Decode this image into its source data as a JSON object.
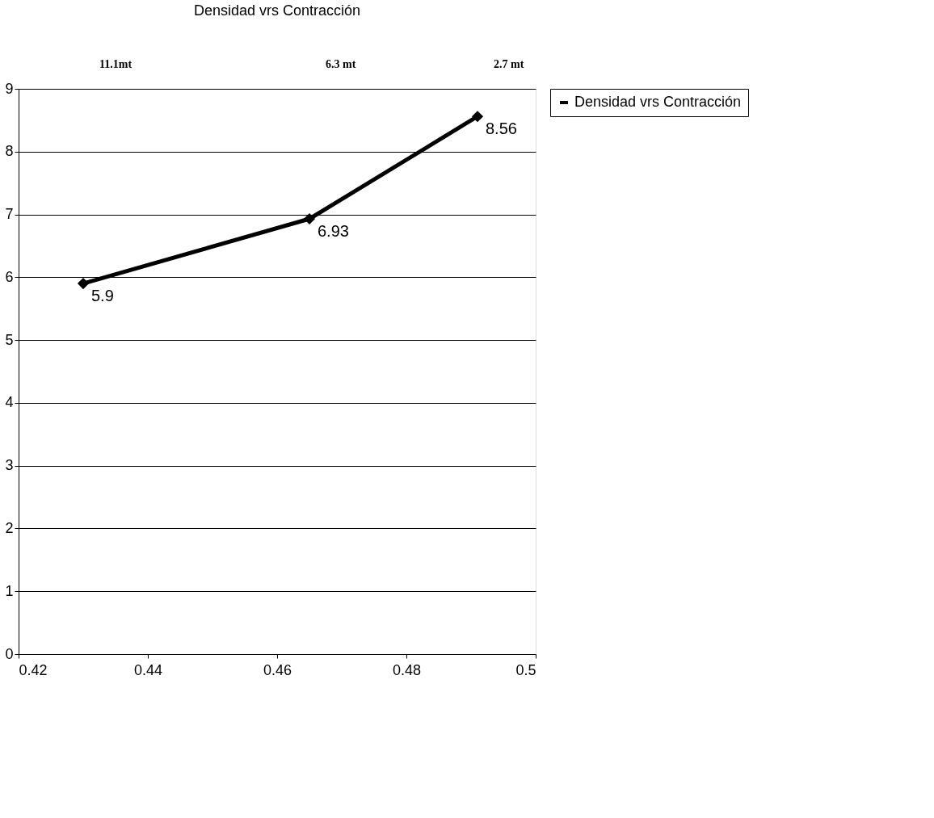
{
  "chart_data": {
    "type": "line",
    "title": "Densidad vrs Contracción",
    "x": [
      0.43,
      0.465,
      0.491
    ],
    "series": [
      {
        "name": "Densidad vrs Contracción",
        "color": "#000000",
        "values": [
          5.9,
          6.93,
          8.56
        ]
      }
    ],
    "xlim": [
      0.42,
      0.5
    ],
    "xticks": [
      0.42,
      0.44,
      0.46,
      0.48,
      0.5
    ],
    "ylim": [
      0,
      9
    ],
    "yticks": [
      0,
      1,
      2,
      3,
      4,
      5,
      6,
      7,
      8,
      9
    ],
    "grid": "y",
    "legend": "right",
    "marker": "diamond",
    "line_style": "solid",
    "data_labels": true,
    "annotations": [
      "11.1mt",
      "6.3 mt",
      "2.7 mt"
    ]
  }
}
